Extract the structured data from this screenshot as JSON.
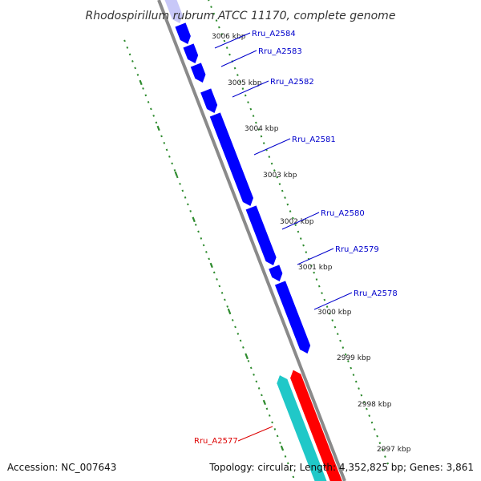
{
  "title": "Rhodospirillum rubrum ATCC 11170, complete genome",
  "footer": {
    "accession": "Accession: NC_007643",
    "summary": "Topology: circular; Length: 4,352,825 bp; Genes: 3,861"
  },
  "colors": {
    "backbone": "#8a8a8a",
    "forward_gene": "#0000ff",
    "reverse_gene": "#ff0000",
    "reverse_cds_shadow": "#20c8c8",
    "tick_dots": "#2e8b2e",
    "forward_label": "#0000cc",
    "reverse_label": "#dd0000"
  },
  "kbp_ticks": [
    "3006 kbp",
    "3005 kbp",
    "3004 kbp",
    "3003 kbp",
    "3002 kbp",
    "3001 kbp",
    "3000 kbp",
    "2999 kbp",
    "2998 kbp",
    "2997 kbp"
  ],
  "gene_labels": [
    {
      "name": "Rru_A2584",
      "strand": "forward"
    },
    {
      "name": "Rru_A2583",
      "strand": "forward"
    },
    {
      "name": "Rru_A2582",
      "strand": "forward"
    },
    {
      "name": "Rru_A2581",
      "strand": "forward"
    },
    {
      "name": "Rru_A2580",
      "strand": "forward"
    },
    {
      "name": "Rru_A2579",
      "strand": "forward"
    },
    {
      "name": "Rru_A2578",
      "strand": "forward"
    },
    {
      "name": "Rru_A2577",
      "strand": "reverse"
    }
  ]
}
